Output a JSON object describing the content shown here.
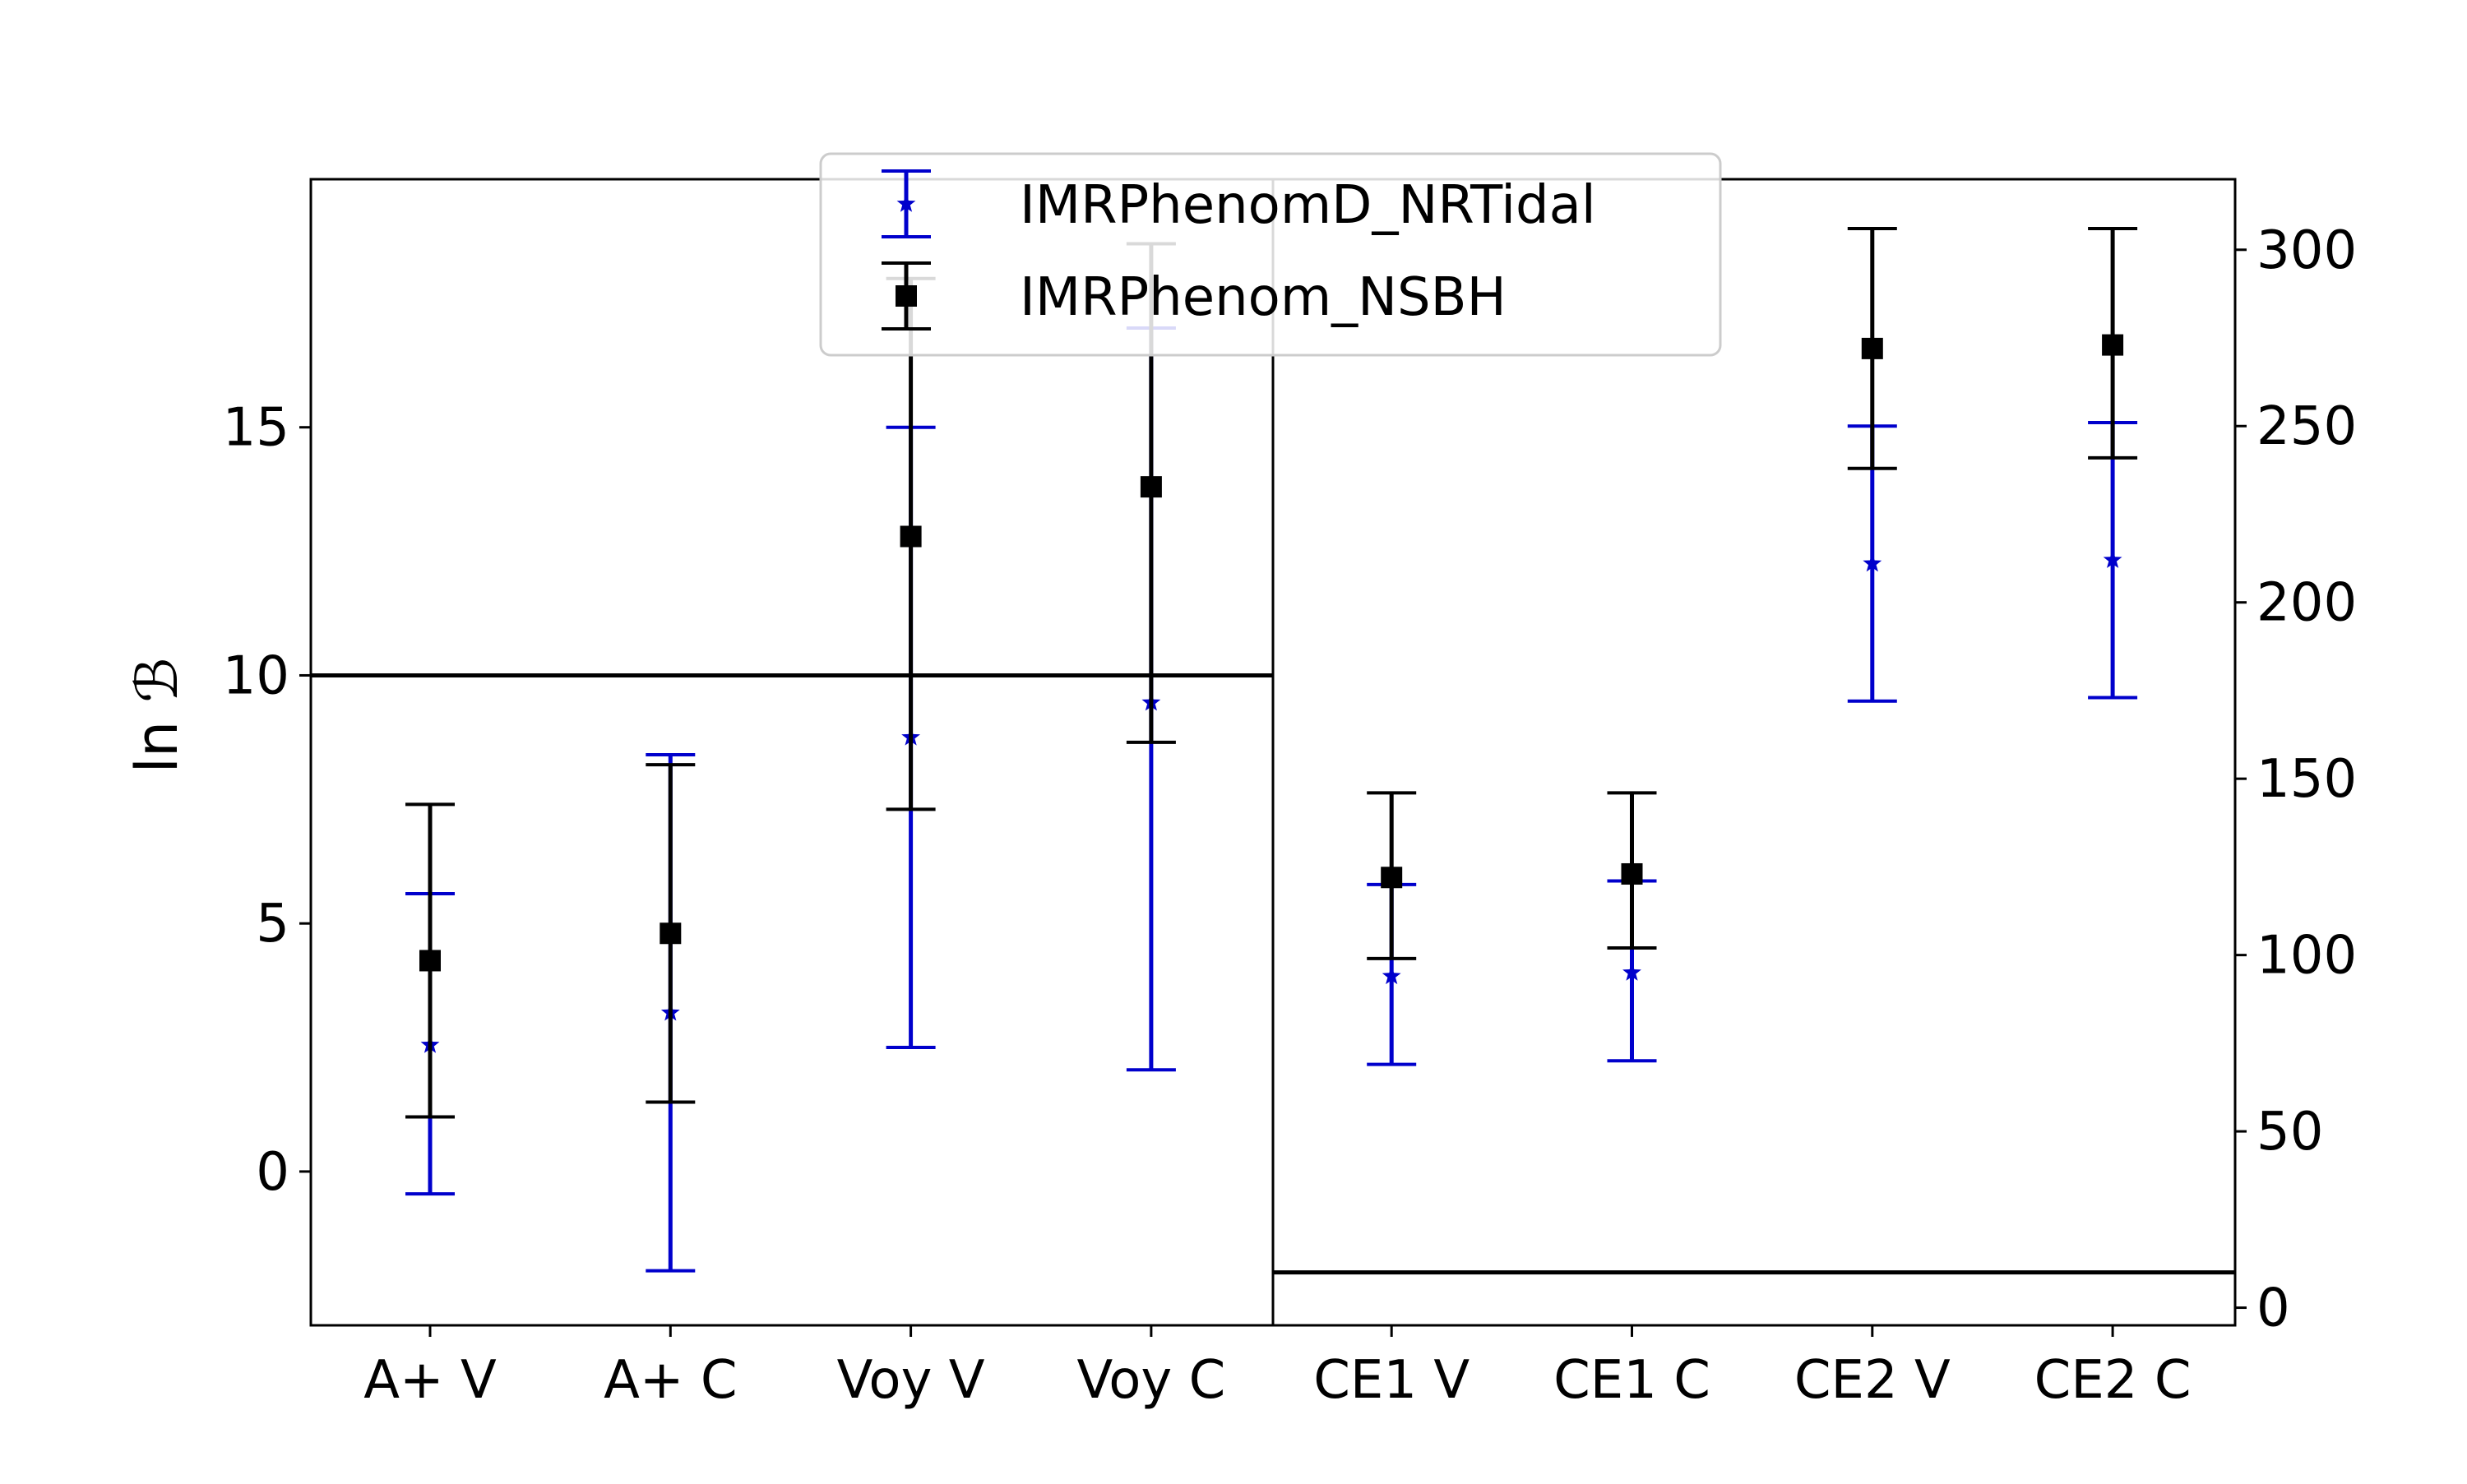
{
  "chart_data": {
    "type": "scatter",
    "style": "errorbar",
    "categories": [
      "A+ V",
      "A+ C",
      "Voy V",
      "Voy C",
      "CE1 V",
      "CE1 C",
      "CE2 V",
      "CE2 C"
    ],
    "ylabel": "ln ℬ",
    "left_axis": {
      "ylim": [
        -3.1,
        20.0
      ],
      "ticks": [
        0,
        5,
        10,
        15
      ],
      "tick_labels": [
        "0",
        "5",
        "10",
        "15"
      ],
      "threshold": 10,
      "applies_to_categories": [
        "A+ V",
        "A+ C",
        "Voy V",
        "Voy C"
      ]
    },
    "right_axis": {
      "ylim": [
        -5,
        320
      ],
      "ticks": [
        0,
        50,
        100,
        150,
        200,
        250,
        300
      ],
      "tick_labels": [
        "0",
        "50",
        "100",
        "150",
        "200",
        "250",
        "300"
      ],
      "threshold": 10,
      "applies_to_categories": [
        "CE1 V",
        "CE1 C",
        "CE2 V",
        "CE2 C"
      ]
    },
    "grid": false,
    "legend_position": "upper-center",
    "series": [
      {
        "name": "IMRPhenomD_NRTidal",
        "color": "#0000cc",
        "marker": "star",
        "values": [
          2.55,
          3.2,
          8.75,
          9.45,
          94,
          95,
          211,
          212
        ],
        "lower": [
          -0.45,
          -2.0,
          2.5,
          2.05,
          69,
          70,
          172,
          173
        ],
        "upper": [
          5.6,
          8.4,
          15.0,
          17.0,
          120,
          121,
          250,
          251
        ]
      },
      {
        "name": "IMRPhenom_NSBH",
        "color": "#000000",
        "marker": "square",
        "values": [
          4.25,
          4.8,
          12.8,
          13.8,
          122,
          123,
          272,
          273
        ],
        "lower": [
          1.1,
          1.4,
          7.3,
          8.65,
          99,
          102,
          238,
          241
        ],
        "upper": [
          7.4,
          8.2,
          18.0,
          18.7,
          146,
          146,
          306,
          306
        ]
      }
    ]
  }
}
